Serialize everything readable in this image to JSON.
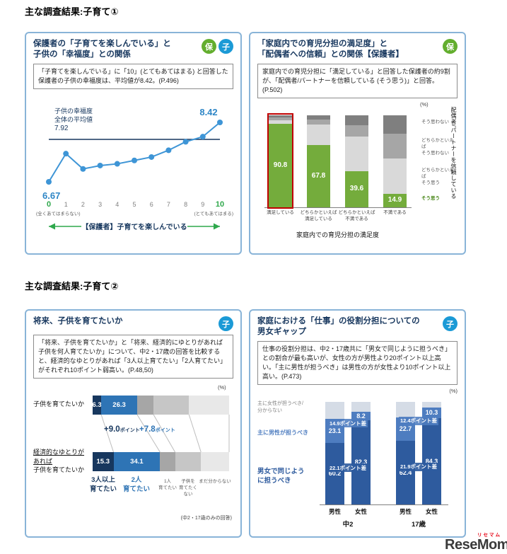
{
  "sections": {
    "s1": "主な調査結果:子育て①",
    "s2": "主な調査結果:子育て②"
  },
  "logo": {
    "jp": "リセマム",
    "en": "ReseMom"
  },
  "panel1": {
    "title1": "保護者の「子育てを楽しんでいる」と",
    "title2": "子供の「幸福度」との関係",
    "badge_green": "保",
    "badge_blue": "子",
    "desc": "「子育てを楽しんでいる」に「10」(とてもあてはまる) と回答した保護者の子供の幸福度は、平均値が8.42。(P.496)"
  },
  "panel2": {
    "title1": "「家庭内での育児分担の満足度」と",
    "title2": "「配偶者への信頼」との関係【保護者】",
    "badge_green": "保",
    "desc": "家庭内での育児分担に「満足している」と回答した保護者の約9割が、「配偶者/パートナーを信頼している (そう思う)」と回答。(P.502)"
  },
  "panel3": {
    "title": "将来、子供を育てたいか",
    "badge_blue": "子",
    "desc": "「将来、子供を育てたいか」と「将来、経済的にゆとりがあれば子供を何人育てたいか」について、中2・17歳の回答を比較すると、経済的なゆとりがあれば「3人以上育てたい」「2人育てたい」がそれぞれ10ポイント弱高い。(P.48,50)"
  },
  "panel4": {
    "title1": "家庭における「仕事」の役割分担についての",
    "title2": "男女ギャップ",
    "badge_blue": "子",
    "desc": "仕事の役割分担は、中2・17歳共に「男女で同じように担うべき」との割合が最も高いが、女性の方が男性より20ポイント以上高い。「主に男性が担うべき」は男性の方が女性より10ポイント以上高い。(P.473)"
  },
  "chart_data": [
    {
      "type": "line",
      "title": "保護者の「子育てを楽しんでいる」と子供の「幸福度」との関係",
      "x": [
        0,
        1,
        2,
        3,
        4,
        5,
        6,
        7,
        8,
        9,
        10
      ],
      "values": [
        6.67,
        7.5,
        7.05,
        7.15,
        7.2,
        7.3,
        7.4,
        7.6,
        7.85,
        8.0,
        8.42
      ],
      "average": 7.92,
      "average_label": [
        "子供の幸福度",
        "全体の平均値",
        "7.92"
      ],
      "first_point_label": "6.67",
      "last_point_label": "8.42",
      "x_min_note": "(全くあてはまらない)",
      "x_max_note": "(とてもあてはまる)",
      "axis_title": "【保護者】子育てを楽しんでいる",
      "ylim": [
        6.3,
        8.7
      ],
      "colors": {
        "line": "#3E95D6",
        "value": "#2E86C6",
        "average": "#17375E",
        "green": "#2FA84C"
      }
    },
    {
      "type": "bar",
      "stacked": true,
      "title": "「家庭内での育児分担の満足度」と「配偶者への信頼」との関係【保護者】",
      "unit": "(%)",
      "categories": [
        [
          "満足している"
        ],
        [
          "どちらかといえば",
          "満足している"
        ],
        [
          "どちらかといえば",
          "不満である"
        ],
        [
          "不満である"
        ]
      ],
      "series": [
        {
          "name": "そう思う",
          "color": "#74AC3C",
          "values": [
            90.8,
            67.8,
            39.6,
            14.9
          ],
          "labeled": true
        },
        {
          "name": "どちらかといえばそう思う",
          "color": "#D9D9D9",
          "values": [
            4.0,
            22.0,
            37.0,
            38.0
          ]
        },
        {
          "name": "どちらかといえばそう思わない",
          "color": "#A6A6A6",
          "values": [
            2.6,
            5.5,
            13.0,
            27.0
          ]
        },
        {
          "name": "そう思わない",
          "color": "#7F7F7F",
          "values": [
            2.6,
            4.7,
            10.4,
            20.1
          ]
        }
      ],
      "highlight_bar": 0,
      "highlight_color": "#C00000",
      "legend_top_down": [
        [
          "そう思わない"
        ],
        [
          "どちらかといえば",
          "そう思わない"
        ],
        [
          "どちらかといえば",
          "そう思う"
        ],
        [
          "そう思う"
        ]
      ],
      "side_label": "配偶者/パートナーを信頼している",
      "axis_title": "家庭内での育児分担の満足度"
    },
    {
      "type": "bar",
      "orientation": "horizontal",
      "stacked": true,
      "title": "将来、子供を育てたいか",
      "unit": "(%)",
      "rows": [
        {
          "label": [
            "子供を育てたいか"
          ],
          "values": [
            6.3,
            26.3,
            12.0,
            26.0,
            29.4
          ]
        },
        {
          "label": [
            "経済的なゆとりが",
            "あれば",
            "子供を育てたいか"
          ],
          "values": [
            15.3,
            34.1,
            11.0,
            19.0,
            20.6
          ]
        }
      ],
      "labeled_segments": 2,
      "segment_colors": [
        "#17375E",
        "#2E74B5",
        "#A6A6A6",
        "#C6C6C6",
        "#E8E8E8"
      ],
      "annotations": [
        {
          "value": "+9.0",
          "suffix": "ポイント",
          "color": "#17375E"
        },
        {
          "value": "+7.8",
          "suffix": "ポイント",
          "color": "#2E74B5"
        }
      ],
      "legend": [
        {
          "lines": [
            "3人以上",
            "育てたい"
          ],
          "color": "#17375E",
          "bold": true
        },
        {
          "lines": [
            "2人",
            "育てたい"
          ],
          "color": "#2E74B5",
          "bold": true
        },
        {
          "lines": [
            "1人",
            "育てたい"
          ],
          "color": "#595959"
        },
        {
          "lines": [
            "子供を",
            "育てたく",
            "ない"
          ],
          "color": "#595959"
        },
        {
          "lines": [
            "まだ分からない"
          ],
          "color": "#595959"
        }
      ],
      "note": "(中2・17歳のみの回答)"
    },
    {
      "type": "bar",
      "stacked": true,
      "title": "家庭における「仕事」の役割分担についての男女ギャップ",
      "unit": "(%)",
      "groups": [
        {
          "label": "中2",
          "bars": [
            {
              "label": "男性",
              "equal": 60.2,
              "male": 23.1,
              "other": 16.7
            },
            {
              "label": "女性",
              "equal": 82.3,
              "male": 8.2,
              "other": 9.5
            }
          ],
          "diff_male": "14.9",
          "diff_equal": "22.1"
        },
        {
          "label": "17歳",
          "bars": [
            {
              "label": "男性",
              "equal": 62.4,
              "male": 22.7,
              "other": 14.9
            },
            {
              "label": "女性",
              "equal": 84.3,
              "male": 10.3,
              "other": 5.4
            }
          ],
          "diff_male": "12.4",
          "diff_equal": "21.9"
        }
      ],
      "diff_suffix": "ポイント差",
      "legend": {
        "other": [
          "主に女性が担うべき/",
          "分からない"
        ],
        "male": "主に男性が担うべき",
        "equal_lines": [
          "男女で同じよう",
          "に担うべき"
        ]
      },
      "colors": {
        "equal": "#2E5B9E",
        "male": "#4E7DC0",
        "other": "#D5DCE6"
      }
    }
  ]
}
